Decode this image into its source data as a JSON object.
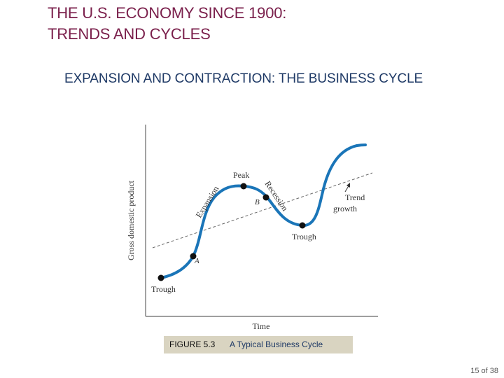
{
  "slide": {
    "title_line1": "THE U.S. ECONOMY SINCE 1900:",
    "title_line2": "TRENDS AND CYCLES",
    "subtitle": "EXPANSION AND CONTRACTION:  THE BUSINESS CYCLE"
  },
  "figure": {
    "y_axis_label": "Gross domestic product",
    "x_axis_label": "Time",
    "labels": {
      "trough_left": "Trough",
      "trough_right": "Trough",
      "peak": "Peak",
      "expansion": "Expansion",
      "recession": "Recession",
      "point_a": "A",
      "point_b": "B",
      "trend_line1": "Trend",
      "trend_line2": "growth"
    },
    "colors": {
      "curve": "#1a75b8",
      "trend": "#666666",
      "axis": "#666666",
      "point": "#111111"
    }
  },
  "caption": {
    "figure_number": "FIGURE 5.3",
    "description": "A Typical Business Cycle"
  },
  "footer": {
    "page_indicator": "15 of 38"
  }
}
